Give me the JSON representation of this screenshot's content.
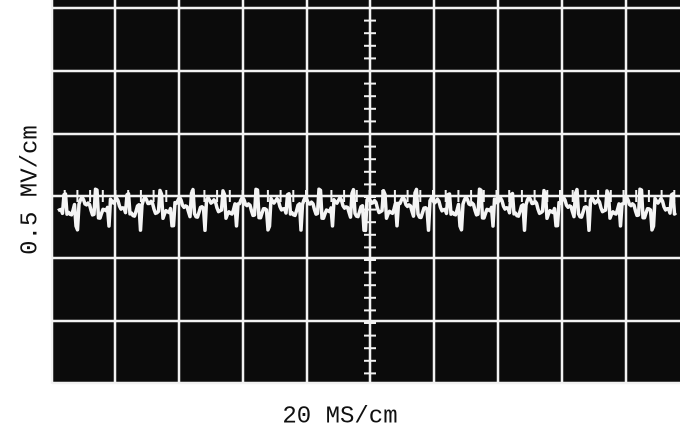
{
  "y_axis_label": "0.5 MV/cm",
  "x_axis_label": "20 MS/cm"
}
